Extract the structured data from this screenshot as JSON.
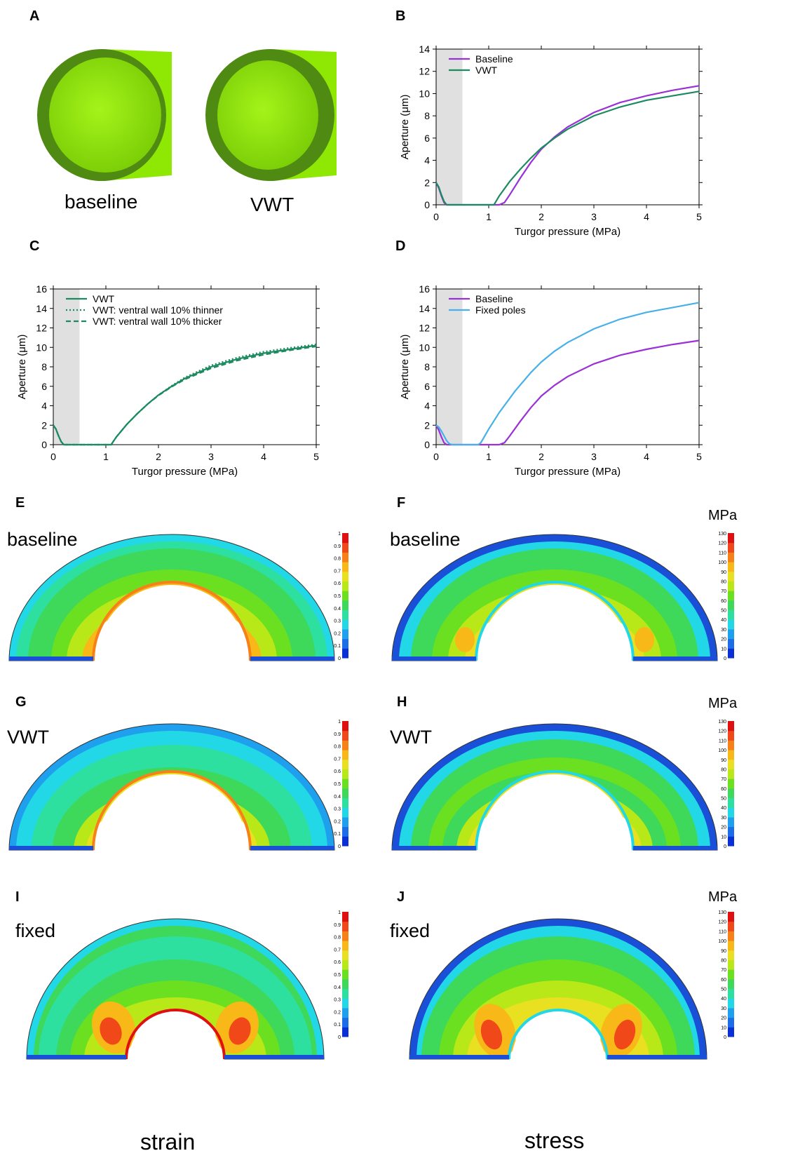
{
  "panel_letters": {
    "A": "A",
    "B": "B",
    "C": "C",
    "D": "D",
    "E": "E",
    "F": "F",
    "G": "G",
    "H": "H",
    "I": "I",
    "J": "J"
  },
  "panelA": {
    "left_label": "baseline",
    "right_label": "VWT",
    "tube_colors": {
      "face": "#86e000",
      "ring": "#4f8a12",
      "side": "#9ef50a"
    }
  },
  "maps": {
    "E_label": "baseline",
    "F_label": "baseline",
    "G_label": "VWT",
    "H_label": "VWT",
    "I_label": "fixed",
    "J_label": "fixed",
    "stress_unit": "MPa"
  },
  "column_labels": {
    "left": "strain",
    "right": "stress"
  },
  "colorbars": {
    "strain_ticks": [
      "0",
      "0.1",
      "0.2",
      "0.3",
      "0.4",
      "0.5",
      "0.6",
      "0.7",
      "0.8",
      "0.9",
      "1"
    ],
    "stress_ticks": [
      "0",
      "10",
      "20",
      "30",
      "40",
      "50",
      "60",
      "70",
      "80",
      "90",
      "100",
      "110",
      "120",
      "130"
    ],
    "colors": [
      "#0a2fd6",
      "#1b6ee8",
      "#1fa0ee",
      "#22d8e6",
      "#2ee0a0",
      "#3ed85a",
      "#6be020",
      "#b8e818",
      "#e8e020",
      "#f8b818",
      "#f88018",
      "#f04818",
      "#e01010"
    ]
  },
  "chart_data": [
    {
      "id": "B",
      "type": "line",
      "xlabel": "Turgor pressure (MPa)",
      "ylabel": "Aperture (μm)",
      "xlim": [
        0,
        5
      ],
      "ylim": [
        0,
        14
      ],
      "xticks": [
        "0",
        "1",
        "2",
        "3",
        "4",
        "5"
      ],
      "yticks": [
        "0",
        "2",
        "4",
        "6",
        "8",
        "10",
        "12",
        "14"
      ],
      "shaded": [
        0,
        0.5
      ],
      "series": [
        {
          "name": "Baseline",
          "color": "#9a30d8",
          "dash": "",
          "x": [
            0,
            0.05,
            0.1,
            0.15,
            0.2,
            0.3,
            0.5,
            1.0,
            1.2,
            1.3,
            1.4,
            1.6,
            1.8,
            2.0,
            2.25,
            2.5,
            3.0,
            3.5,
            4.0,
            4.5,
            5.0
          ],
          "y": [
            2.0,
            1.5,
            0.8,
            0.2,
            0,
            0,
            0,
            0,
            0,
            0.2,
            0.9,
            2.4,
            3.8,
            5.0,
            6.1,
            7.0,
            8.3,
            9.2,
            9.8,
            10.3,
            10.7
          ]
        },
        {
          "name": "VWT",
          "color": "#1c8a60",
          "dash": "",
          "x": [
            0,
            0.05,
            0.1,
            0.15,
            0.2,
            0.3,
            0.5,
            1.0,
            1.1,
            1.2,
            1.4,
            1.6,
            1.8,
            2.0,
            2.25,
            2.5,
            3.0,
            3.5,
            4.0,
            4.5,
            5.0
          ],
          "y": [
            2.0,
            1.6,
            0.9,
            0.3,
            0,
            0,
            0,
            0,
            0,
            0.8,
            2.1,
            3.2,
            4.2,
            5.1,
            6.0,
            6.8,
            8.0,
            8.8,
            9.4,
            9.8,
            10.2
          ]
        }
      ]
    },
    {
      "id": "C",
      "type": "line",
      "xlabel": "Turgor pressure (MPa)",
      "ylabel": "Aperture (μm)",
      "xlim": [
        0,
        5
      ],
      "ylim": [
        0,
        16
      ],
      "xticks": [
        "0",
        "1",
        "2",
        "3",
        "4",
        "5"
      ],
      "yticks": [
        "0",
        "2",
        "4",
        "6",
        "8",
        "10",
        "12",
        "14",
        "16"
      ],
      "shaded": [
        0,
        0.5
      ],
      "series": [
        {
          "name": "VWT",
          "color": "#1c8a60",
          "dash": "",
          "x": [
            0,
            0.05,
            0.1,
            0.15,
            0.2,
            0.3,
            0.5,
            1.0,
            1.1,
            1.2,
            1.4,
            1.6,
            1.8,
            2.0,
            2.25,
            2.5,
            3.0,
            3.5,
            4.0,
            4.5,
            5.0
          ],
          "y": [
            2.0,
            1.6,
            0.9,
            0.3,
            0,
            0,
            0,
            0,
            0,
            0.8,
            2.1,
            3.2,
            4.2,
            5.1,
            6.0,
            6.8,
            8.0,
            8.8,
            9.4,
            9.8,
            10.2
          ]
        },
        {
          "name": "VWT: ventral wall 10% thinner",
          "color": "#1c8a60",
          "dash": "2,3",
          "x": [
            0,
            0.05,
            0.1,
            0.15,
            0.2,
            0.3,
            0.5,
            1.0,
            1.1,
            1.2,
            1.4,
            1.6,
            1.8,
            2.0,
            2.25,
            2.5,
            3.0,
            3.5,
            4.0,
            4.5,
            5.0
          ],
          "y": [
            2.0,
            1.6,
            0.9,
            0.3,
            0,
            0,
            0,
            0,
            0,
            0.8,
            2.1,
            3.2,
            4.2,
            5.1,
            6.05,
            6.9,
            8.15,
            8.95,
            9.55,
            9.95,
            10.3
          ]
        },
        {
          "name": "VWT: ventral wall 10% thicker",
          "color": "#1c8a60",
          "dash": "7,4",
          "x": [
            0,
            0.05,
            0.1,
            0.15,
            0.2,
            0.3,
            0.5,
            1.0,
            1.1,
            1.2,
            1.4,
            1.6,
            1.8,
            2.0,
            2.25,
            2.5,
            3.0,
            3.5,
            4.0,
            4.5,
            5.0
          ],
          "y": [
            2.0,
            1.6,
            0.9,
            0.3,
            0,
            0,
            0,
            0,
            0,
            0.8,
            2.1,
            3.2,
            4.2,
            5.05,
            5.95,
            6.7,
            7.85,
            8.65,
            9.25,
            9.7,
            10.1
          ]
        }
      ]
    },
    {
      "id": "D",
      "type": "line",
      "xlabel": "Turgor pressure (MPa)",
      "ylabel": "Aperture (μm)",
      "xlim": [
        0,
        5
      ],
      "ylim": [
        0,
        16
      ],
      "xticks": [
        "0",
        "1",
        "2",
        "3",
        "4",
        "5"
      ],
      "yticks": [
        "0",
        "2",
        "4",
        "6",
        "8",
        "10",
        "12",
        "14",
        "16"
      ],
      "shaded": [
        0,
        0.5
      ],
      "series": [
        {
          "name": "Baseline",
          "color": "#9a30d8",
          "dash": "",
          "x": [
            0,
            0.05,
            0.1,
            0.15,
            0.2,
            0.3,
            0.5,
            1.0,
            1.2,
            1.3,
            1.4,
            1.6,
            1.8,
            2.0,
            2.25,
            2.5,
            3.0,
            3.5,
            4.0,
            4.5,
            5.0
          ],
          "y": [
            2.0,
            1.5,
            0.8,
            0.2,
            0,
            0,
            0,
            0,
            0,
            0.2,
            0.9,
            2.4,
            3.8,
            5.0,
            6.1,
            7.0,
            8.3,
            9.2,
            9.8,
            10.3,
            10.7
          ]
        },
        {
          "name": "Fixed poles",
          "color": "#48b0e8",
          "dash": "",
          "x": [
            0,
            0.05,
            0.1,
            0.15,
            0.2,
            0.25,
            0.3,
            0.5,
            0.8,
            0.85,
            1.0,
            1.2,
            1.5,
            1.8,
            2.0,
            2.25,
            2.5,
            3.0,
            3.5,
            4.0,
            4.5,
            5.0
          ],
          "y": [
            2.0,
            1.8,
            1.4,
            0.9,
            0.4,
            0.1,
            0,
            0,
            0,
            0.2,
            1.6,
            3.3,
            5.5,
            7.4,
            8.5,
            9.6,
            10.5,
            11.9,
            12.9,
            13.6,
            14.1,
            14.6
          ]
        }
      ]
    }
  ]
}
